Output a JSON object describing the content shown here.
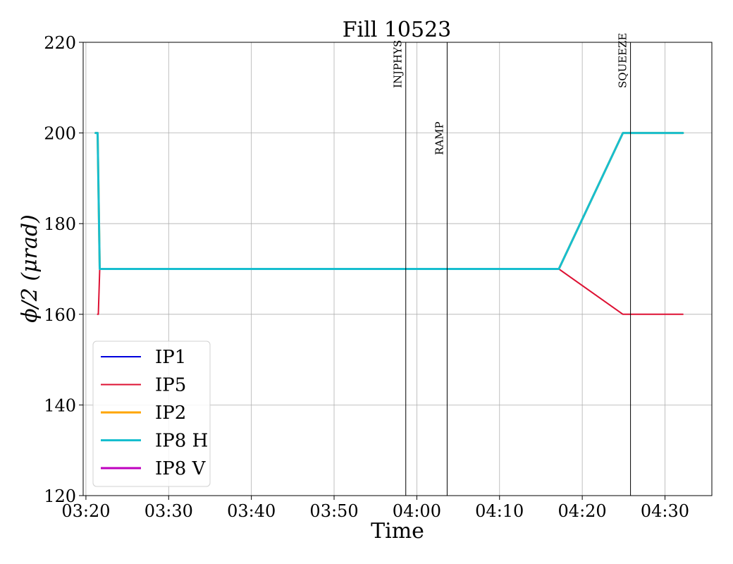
{
  "chart_data": {
    "type": "line",
    "title": "Fill 10523",
    "xlabel": "Time",
    "ylabel": "ϕ/2 (μrad)",
    "xlim": [
      "03:19:40",
      "04:35:40"
    ],
    "ylim": [
      120,
      220
    ],
    "xticks": [
      "03:20",
      "03:30",
      "03:40",
      "03:50",
      "04:00",
      "04:10",
      "04:20",
      "04:30"
    ],
    "yticks": [
      120,
      140,
      160,
      180,
      200,
      220
    ],
    "grid": true,
    "legend_position": "lower-left",
    "vlines": [
      {
        "label": "INJPHYS",
        "x": "03:58:40"
      },
      {
        "label": "RAMP",
        "x": "04:03:40"
      },
      {
        "label": "SQUEEZE",
        "x": "04:25:50"
      }
    ],
    "series": [
      {
        "name": "IP1",
        "color": "#0000dd",
        "x": [
          "03:21:10",
          "03:21:25",
          "03:21:40",
          "04:17:10",
          "04:24:55",
          "04:32:10"
        ],
        "y": [
          200,
          200,
          170,
          170,
          200,
          200
        ]
      },
      {
        "name": "IP5",
        "color": "#dd1133",
        "x": [
          "03:21:25",
          "03:21:30",
          "03:21:40",
          "04:17:10",
          "04:24:55",
          "04:32:10"
        ],
        "y": [
          160,
          160,
          170,
          170,
          160,
          160
        ]
      },
      {
        "name": "IP2",
        "color": "#ffa500",
        "x": [
          "03:21:10",
          "03:21:25",
          "03:21:40",
          "04:17:10",
          "04:24:55",
          "04:32:10"
        ],
        "y": [
          200,
          200,
          170,
          170,
          200,
          200
        ]
      },
      {
        "name": "IP8 H",
        "color": "#17becf",
        "x": [
          "03:21:10",
          "03:21:25",
          "03:21:40",
          "04:17:10",
          "04:24:55",
          "04:32:10"
        ],
        "y": [
          200,
          200,
          170,
          170,
          200,
          200
        ]
      },
      {
        "name": "IP8 V",
        "color": "#bf00bf",
        "x": [],
        "y": []
      }
    ]
  }
}
